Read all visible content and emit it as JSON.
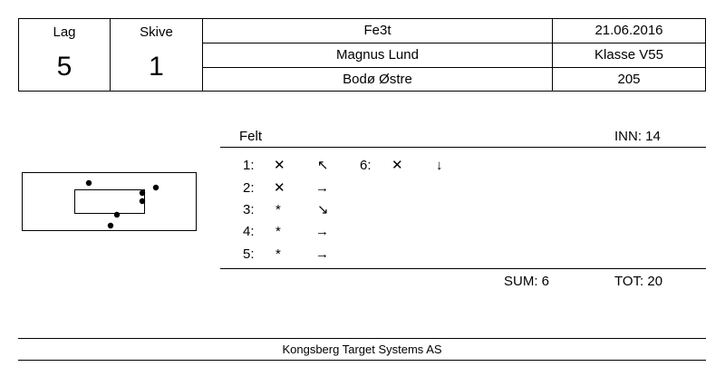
{
  "header": {
    "lag_label": "Lag",
    "lag_value": "5",
    "skive_label": "Skive",
    "skive_value": "1",
    "event": "Fe3t",
    "date": "21.06.2016",
    "shooter": "Magnus Lund",
    "class": "Klasse V55",
    "club": "Bodø Østre",
    "shooter_id": "205"
  },
  "series": {
    "label": "Felt",
    "inner_label": "INN: 14",
    "shots": [
      {
        "num": "1:",
        "result": "✕",
        "direction": "↖"
      },
      {
        "num": "2:",
        "result": "✕",
        "direction": "→"
      },
      {
        "num": "3:",
        "result": "*",
        "direction": "↘"
      },
      {
        "num": "4:",
        "result": "*",
        "direction": "→"
      },
      {
        "num": "5:",
        "result": "*",
        "direction": "→"
      },
      {
        "num": "6:",
        "result": "✕",
        "direction": "↓"
      }
    ],
    "sum_label": "SUM: 6",
    "tot_label": "TOT: 20"
  },
  "footer": {
    "company": "Kongsberg Target Systems AS"
  }
}
